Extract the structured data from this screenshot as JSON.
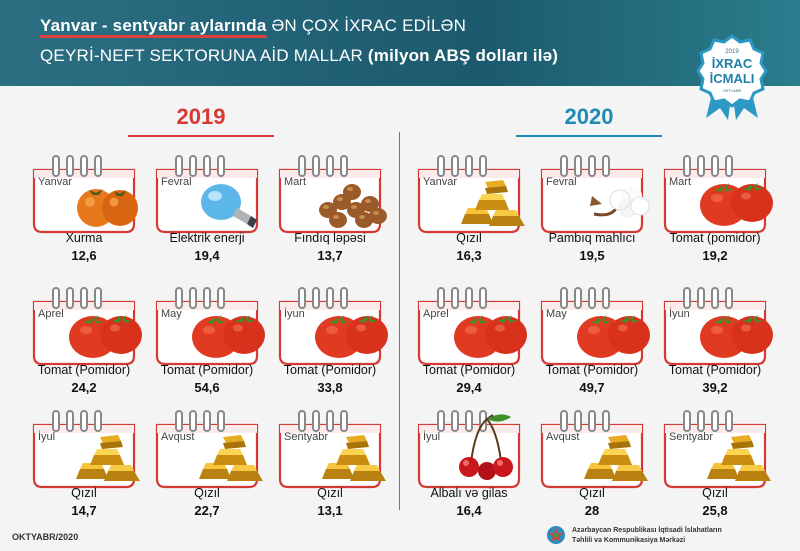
{
  "header": {
    "title_emphasis": "Yanvar - sentyabr aylarında",
    "title_rest": " ƏN ÇOX İXRAC EDİLƏN",
    "subtitle": "QEYRİ-NEFT SEKTORUNA AİD MALLAR",
    "subtitle_unit": "(milyon ABŞ dolları ilə)"
  },
  "badge": {
    "top": "2019",
    "line1": "İXRAC",
    "line2": "İCMALI",
    "bottom": "OKTYABR"
  },
  "year_2019": "2019",
  "year_2020": "2020",
  "items_2019": [
    {
      "month": "Yanvar",
      "product": "Xurma",
      "value": "12,6",
      "icon": "persimmon-icon"
    },
    {
      "month": "Fevral",
      "product": "Elektrik enerji",
      "value": "19,4",
      "icon": "lightbulb-icon"
    },
    {
      "month": "Mart",
      "product": "Fındıq ləpəsi",
      "value": "13,7",
      "icon": "hazelnut-icon"
    },
    {
      "month": "Aprel",
      "product": "Tomat (Pomidor)",
      "value": "24,2",
      "icon": "tomato-icon"
    },
    {
      "month": "May",
      "product": "Tomat (Pomidor)",
      "value": "54,6",
      "icon": "tomato-icon"
    },
    {
      "month": "İyun",
      "product": "Tomat (Pomidor)",
      "value": "33,8",
      "icon": "tomato-icon"
    },
    {
      "month": "İyul",
      "product": "Qızıl",
      "value": "14,7",
      "icon": "gold-bars-icon"
    },
    {
      "month": "Avqust",
      "product": "Qızıl",
      "value": "22,7",
      "icon": "gold-bars-icon"
    },
    {
      "month": "Sentyabr",
      "product": "Qızıl",
      "value": "13,1",
      "icon": "gold-bars-icon"
    }
  ],
  "items_2020": [
    {
      "month": "Yanvar",
      "product": "Qızıl",
      "value": "16,3",
      "icon": "gold-bars-icon"
    },
    {
      "month": "Fevral",
      "product": "Pambıq mahlıcı",
      "value": "19,5",
      "icon": "cotton-icon"
    },
    {
      "month": "Mart",
      "product": "Tomat (pomidor)",
      "value": "19,2",
      "icon": "tomato-icon"
    },
    {
      "month": "Aprel",
      "product": "Tomat (Pomidor)",
      "value": "29,4",
      "icon": "tomato-icon"
    },
    {
      "month": "May",
      "product": "Tomat (Pomidor)",
      "value": "49,7",
      "icon": "tomato-icon"
    },
    {
      "month": "İyun",
      "product": "Tomat (Pomidor)",
      "value": "39,2",
      "icon": "tomato-icon"
    },
    {
      "month": "İyul",
      "product": "Albalı və gilas",
      "value": "16,4",
      "icon": "cherry-icon"
    },
    {
      "month": "Avqust",
      "product": "Qızıl",
      "value": "28",
      "icon": "gold-bars-icon"
    },
    {
      "month": "Sentyabr",
      "product": "Qızıl",
      "value": "25,8",
      "icon": "gold-bars-icon"
    }
  ],
  "footer": {
    "date": "OKTYABR/2020",
    "org_line1": "Azərbaycan Respublikası İqtisadi İslahatların",
    "org_line2": "Təhlili və Kommunikasiya Mərkəzi"
  },
  "colors": {
    "header": "#1c5a6e",
    "red": "#d63a34",
    "blue": "#1f8bb4"
  }
}
